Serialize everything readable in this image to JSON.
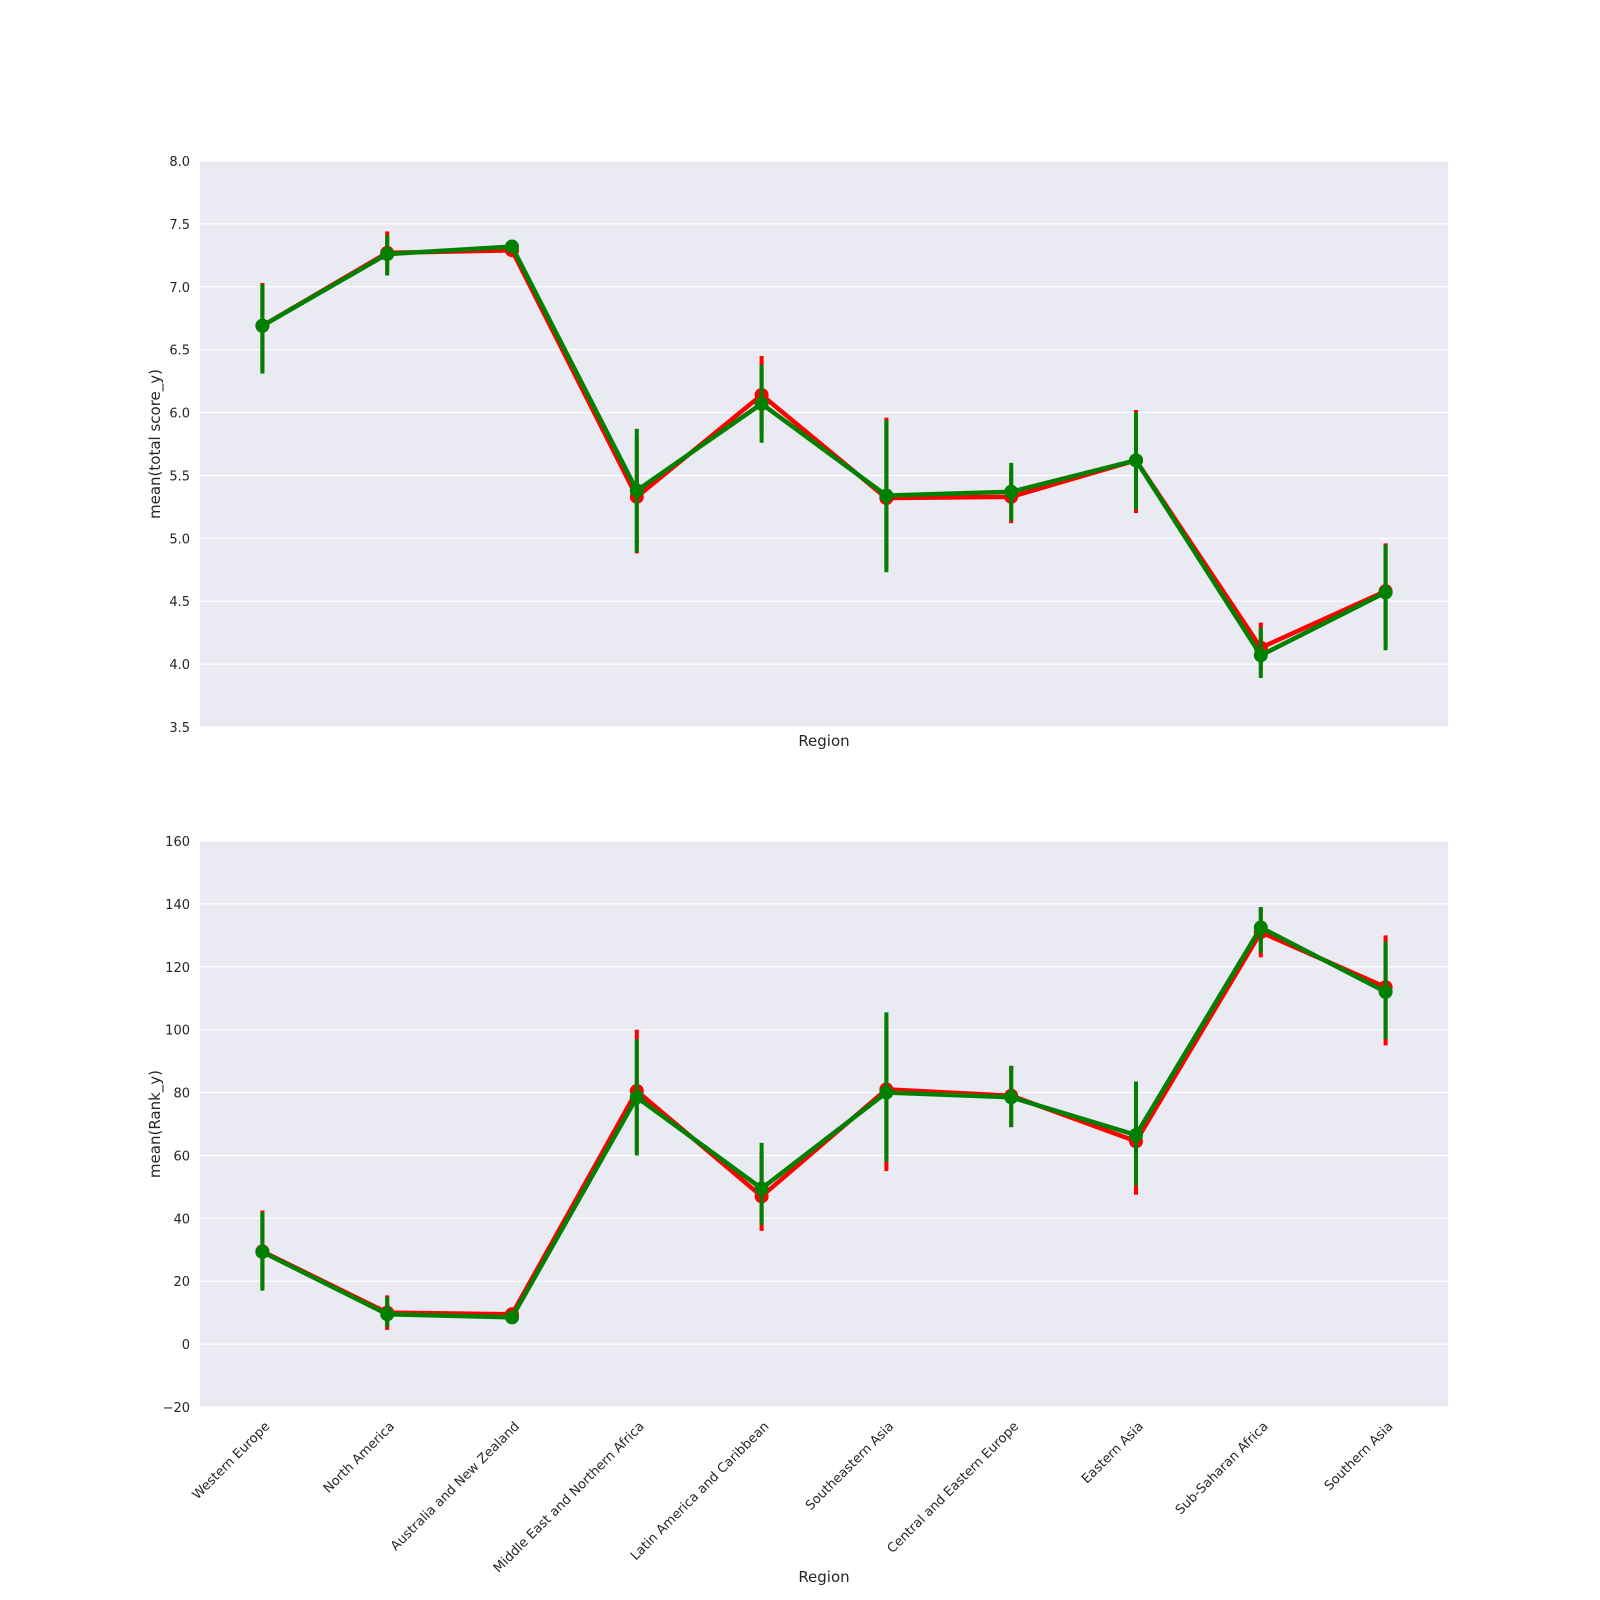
{
  "chart_data": [
    {
      "type": "line",
      "xlabel": "Region",
      "ylabel": "mean(total score_y)",
      "ylim": [
        3.5,
        8.0
      ],
      "yticks": [
        "3.5",
        "4.0",
        "4.5",
        "5.0",
        "5.5",
        "6.0",
        "6.5",
        "7.0",
        "7.5",
        "8.0"
      ],
      "grid": true,
      "show_x_tick_labels": false,
      "categories": [
        "Western Europe",
        "North America",
        "Australia and New Zealand",
        "Middle East and Northern Africa",
        "Latin America and Caribbean",
        "Southeastern Asia",
        "Central and Eastern Europe",
        "Eastern Asia",
        "Sub-Saharan Africa",
        "Southern Asia"
      ],
      "series": [
        {
          "color": "#ff0000",
          "values": [
            6.69,
            7.27,
            7.29,
            5.33,
            6.14,
            5.32,
            5.33,
            5.62,
            4.13,
            4.58
          ],
          "ci_low": [
            6.33,
            7.12,
            7.29,
            4.88,
            5.84,
            4.77,
            5.12,
            5.2,
            3.95,
            4.14
          ],
          "ci_high": [
            7.03,
            7.44,
            7.29,
            5.8,
            6.45,
            5.96,
            5.55,
            6.02,
            4.33,
            4.96
          ]
        },
        {
          "color": "#008000",
          "values": [
            6.69,
            7.26,
            7.32,
            5.38,
            6.07,
            5.34,
            5.37,
            5.62,
            4.07,
            4.57
          ],
          "ci_low": [
            6.31,
            7.09,
            7.32,
            4.89,
            5.76,
            4.73,
            5.14,
            5.23,
            3.89,
            4.11
          ],
          "ci_high": [
            7.02,
            7.41,
            7.32,
            5.87,
            6.38,
            5.94,
            5.6,
            6.0,
            4.29,
            4.95
          ]
        }
      ]
    },
    {
      "type": "line",
      "xlabel": "Region",
      "ylabel": "mean(Rank_y)",
      "ylim": [
        -20,
        160
      ],
      "yticks": [
        "−20",
        "0",
        "20",
        "40",
        "60",
        "80",
        "100",
        "120",
        "140",
        "160"
      ],
      "grid": true,
      "show_x_tick_labels": true,
      "categories": [
        "Western Europe",
        "North America",
        "Australia and New Zealand",
        "Middle East and Northern Africa",
        "Latin America and Caribbean",
        "Southeastern Asia",
        "Central and Eastern Europe",
        "Eastern Asia",
        "Sub-Saharan Africa",
        "Southern Asia"
      ],
      "series": [
        {
          "color": "#ff0000",
          "values": [
            29.5,
            10.0,
            9.5,
            80.5,
            47.0,
            81.0,
            79.0,
            64.5,
            131.0,
            113.5
          ],
          "ci_low": [
            17.5,
            4.5,
            9.5,
            61.0,
            36.0,
            55.0,
            69.0,
            47.5,
            123.0,
            95.0
          ],
          "ci_high": [
            42.5,
            15.5,
            9.5,
            100.0,
            61.0,
            104.0,
            88.5,
            82.5,
            138.5,
            130.0
          ]
        },
        {
          "color": "#008000",
          "values": [
            29.3,
            9.5,
            8.5,
            78.5,
            49.5,
            80.0,
            78.5,
            66.5,
            132.5,
            112.0
          ],
          "ci_low": [
            17.0,
            5.5,
            8.5,
            60.0,
            38.0,
            58.0,
            69.0,
            50.5,
            124.5,
            97.0
          ],
          "ci_high": [
            42.0,
            15.0,
            8.5,
            97.0,
            64.0,
            105.5,
            88.5,
            83.5,
            139.0,
            128.0
          ]
        }
      ]
    }
  ]
}
